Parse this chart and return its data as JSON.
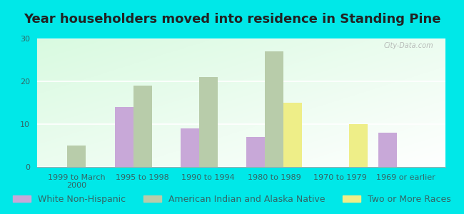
{
  "title": "Year householders moved into residence in Standing Pine",
  "categories": [
    "1999 to March\n2000",
    "1995 to 1998",
    "1990 to 1994",
    "1980 to 1989",
    "1970 to 1979",
    "1969 or earlier"
  ],
  "series": {
    "White Non-Hispanic": [
      0,
      14,
      9,
      7,
      0,
      8
    ],
    "American Indian and Alaska Native": [
      5,
      19,
      21,
      27,
      0,
      0
    ],
    "Two or More Races": [
      0,
      0,
      0,
      15,
      10,
      0
    ]
  },
  "colors": {
    "White Non-Hispanic": "#c8a8d8",
    "American Indian and Alaska Native": "#b8ccaa",
    "Two or More Races": "#eeee88"
  },
  "ylim": [
    0,
    30
  ],
  "yticks": [
    0,
    10,
    20,
    30
  ],
  "background_color": "#00e8e8",
  "watermark": "City-Data.com",
  "bar_width": 0.28,
  "title_fontsize": 13,
  "legend_fontsize": 9,
  "tick_fontsize": 8,
  "tick_color": "#336666"
}
